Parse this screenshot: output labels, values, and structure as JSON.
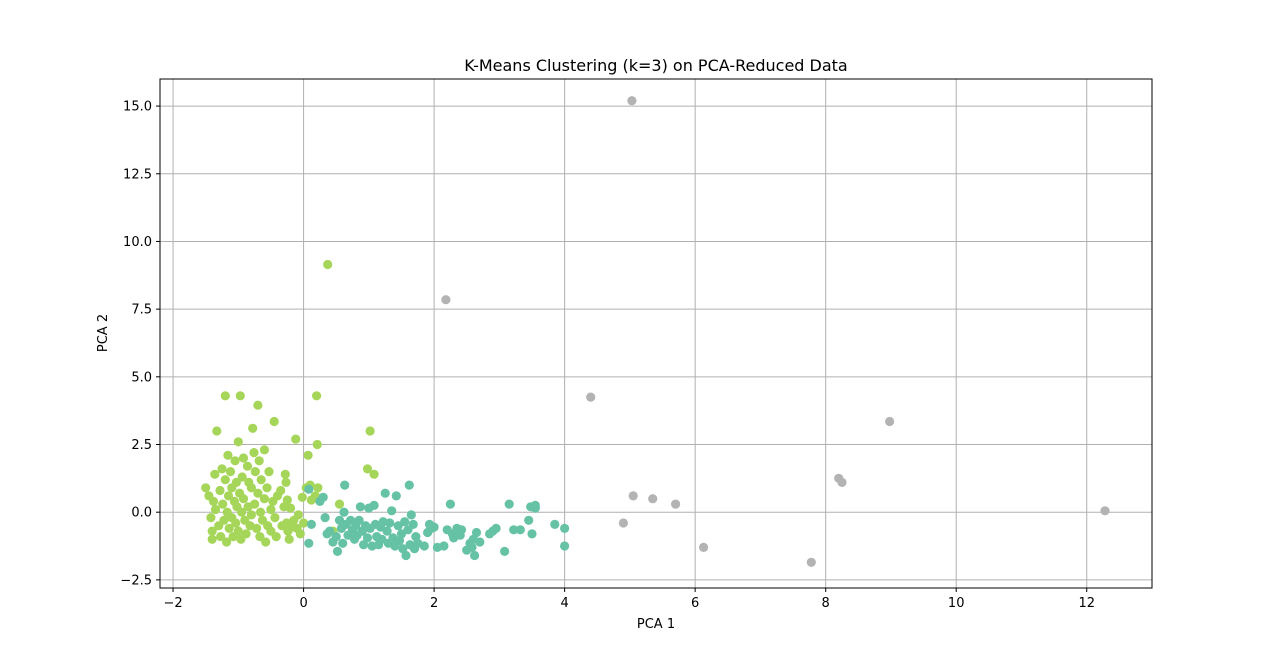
{
  "chart_data": {
    "type": "scatter",
    "title": "K-Means Clustering (k=3) on PCA-Reduced Data",
    "xlabel": "PCA 1",
    "ylabel": "PCA 2",
    "xlim": [
      -2.2,
      13.0
    ],
    "ylim": [
      -2.8,
      16.0
    ],
    "xticks": [
      -2,
      0,
      2,
      4,
      6,
      8,
      10,
      12
    ],
    "xtick_labels": [
      "−2",
      "0",
      "2",
      "4",
      "6",
      "8",
      "10",
      "12"
    ],
    "yticks": [
      -2.5,
      0.0,
      2.5,
      5.0,
      7.5,
      10.0,
      12.5,
      15.0
    ],
    "ytick_labels": [
      "−2.5",
      "0.0",
      "2.5",
      "5.0",
      "7.5",
      "10.0",
      "12.5",
      "15.0"
    ],
    "grid": true,
    "legend": "none",
    "series": [
      {
        "color": "#a5d65a",
        "points": [
          [
            -1.5,
            0.9
          ],
          [
            -1.45,
            0.6
          ],
          [
            -1.42,
            -0.2
          ],
          [
            -1.4,
            -0.7
          ],
          [
            -1.4,
            -1.0
          ],
          [
            -1.38,
            0.4
          ],
          [
            -1.36,
            1.4
          ],
          [
            -1.35,
            0.1
          ],
          [
            -1.33,
            3.0
          ],
          [
            -1.3,
            -0.5
          ],
          [
            -1.28,
            0.8
          ],
          [
            -1.27,
            -0.9
          ],
          [
            -1.25,
            1.6
          ],
          [
            -1.24,
            0.3
          ],
          [
            -1.22,
            -0.3
          ],
          [
            -1.2,
            4.3
          ],
          [
            -1.2,
            1.2
          ],
          [
            -1.18,
            -1.1
          ],
          [
            -1.17,
            0.0
          ],
          [
            -1.16,
            2.1
          ],
          [
            -1.15,
            0.6
          ],
          [
            -1.14,
            -0.6
          ],
          [
            -1.12,
            1.5
          ],
          [
            -1.1,
            0.9
          ],
          [
            -1.1,
            -0.2
          ],
          [
            -1.08,
            -0.9
          ],
          [
            -1.06,
            0.4
          ],
          [
            -1.05,
            1.9
          ],
          [
            -1.04,
            -0.4
          ],
          [
            -1.03,
            1.1
          ],
          [
            -1.02,
            0.2
          ],
          [
            -1.0,
            2.6
          ],
          [
            -1.0,
            -0.7
          ],
          [
            -0.98,
            0.7
          ],
          [
            -0.97,
            4.3
          ],
          [
            -0.96,
            -1.0
          ],
          [
            -0.95,
            0.0
          ],
          [
            -0.94,
            1.3
          ],
          [
            -0.92,
            2.0
          ],
          [
            -0.92,
            0.5
          ],
          [
            -0.9,
            -0.3
          ],
          [
            -0.88,
            -0.8
          ],
          [
            -0.86,
            1.7
          ],
          [
            -0.85,
            0.2
          ],
          [
            -0.84,
            1.1
          ],
          [
            -0.82,
            -0.5
          ],
          [
            -0.8,
            0.9
          ],
          [
            -0.8,
            -0.1
          ],
          [
            -0.78,
            3.1
          ],
          [
            -0.76,
            2.2
          ],
          [
            -0.75,
            0.3
          ],
          [
            -0.74,
            1.5
          ],
          [
            -0.72,
            -0.6
          ],
          [
            -0.7,
            3.95
          ],
          [
            -0.7,
            0.7
          ],
          [
            -0.68,
            1.9
          ],
          [
            -0.67,
            -0.9
          ],
          [
            -0.66,
            0.0
          ],
          [
            -0.65,
            1.2
          ],
          [
            -0.63,
            -0.3
          ],
          [
            -0.6,
            2.3
          ],
          [
            -0.6,
            0.5
          ],
          [
            -0.58,
            -1.1
          ],
          [
            -0.56,
            0.9
          ],
          [
            -0.55,
            -0.5
          ],
          [
            -0.53,
            1.5
          ],
          [
            -0.5,
            0.1
          ],
          [
            -0.5,
            -0.7
          ],
          [
            -0.47,
            0.4
          ],
          [
            -0.45,
            3.35
          ],
          [
            -0.44,
            -0.2
          ],
          [
            -0.42,
            -0.9
          ],
          [
            -0.4,
            0.6
          ],
          [
            -0.35,
            0.8
          ],
          [
            -0.33,
            -0.5
          ],
          [
            -0.3,
            0.2
          ],
          [
            -0.28,
            1.4
          ],
          [
            -0.27,
            1.1
          ],
          [
            -0.26,
            -0.4
          ],
          [
            -0.25,
            0.45
          ],
          [
            -0.24,
            -0.7
          ],
          [
            -0.22,
            -1.0
          ],
          [
            -0.2,
            0.15
          ],
          [
            -0.18,
            -0.55
          ],
          [
            -0.15,
            -0.3
          ],
          [
            -0.12,
            2.7
          ],
          [
            -0.1,
            -0.6
          ],
          [
            -0.08,
            -0.1
          ],
          [
            -0.05,
            -0.8
          ],
          [
            -0.02,
            0.55
          ],
          [
            0.0,
            -0.4
          ],
          [
            0.04,
            0.9
          ],
          [
            0.07,
            2.1
          ],
          [
            0.1,
            1.0
          ],
          [
            0.12,
            0.45
          ],
          [
            0.18,
            0.6
          ],
          [
            0.2,
            4.3
          ],
          [
            0.21,
            2.5
          ],
          [
            0.22,
            0.9
          ],
          [
            0.37,
            9.15
          ],
          [
            0.45,
            -0.7
          ],
          [
            0.55,
            0.3
          ],
          [
            0.98,
            1.6
          ],
          [
            1.02,
            3.0
          ],
          [
            1.08,
            1.4
          ]
        ]
      },
      {
        "color": "#66c2a5",
        "points": [
          [
            0.08,
            0.85
          ],
          [
            0.08,
            -1.15
          ],
          [
            0.12,
            -0.45
          ],
          [
            0.25,
            0.4
          ],
          [
            0.3,
            0.55
          ],
          [
            0.33,
            -0.2
          ],
          [
            0.36,
            -0.8
          ],
          [
            0.4,
            -0.7
          ],
          [
            0.45,
            -1.1
          ],
          [
            0.5,
            -0.9
          ],
          [
            0.52,
            -1.45
          ],
          [
            0.55,
            -0.3
          ],
          [
            0.58,
            -0.6
          ],
          [
            0.6,
            -1.15
          ],
          [
            0.62,
            0.0
          ],
          [
            0.63,
            1.0
          ],
          [
            0.65,
            -0.45
          ],
          [
            0.68,
            -0.85
          ],
          [
            0.72,
            -0.3
          ],
          [
            0.75,
            -0.65
          ],
          [
            0.78,
            -1.0
          ],
          [
            0.8,
            -0.5
          ],
          [
            0.82,
            -0.85
          ],
          [
            0.85,
            -0.3
          ],
          [
            0.87,
            0.2
          ],
          [
            0.9,
            -0.7
          ],
          [
            0.92,
            -1.2
          ],
          [
            0.95,
            -0.5
          ],
          [
            0.98,
            -0.95
          ],
          [
            1.0,
            0.15
          ],
          [
            1.02,
            -0.6
          ],
          [
            1.05,
            -1.25
          ],
          [
            1.08,
            0.25
          ],
          [
            1.1,
            -0.45
          ],
          [
            1.12,
            -0.9
          ],
          [
            1.15,
            -1.2
          ],
          [
            1.18,
            -0.55
          ],
          [
            1.2,
            -1.0
          ],
          [
            1.22,
            -0.35
          ],
          [
            1.25,
            0.7
          ],
          [
            1.28,
            -0.7
          ],
          [
            1.3,
            -1.15
          ],
          [
            1.32,
            -0.4
          ],
          [
            1.35,
            0.05
          ],
          [
            1.37,
            -0.95
          ],
          [
            1.4,
            -1.25
          ],
          [
            1.42,
            0.6
          ],
          [
            1.45,
            -0.5
          ],
          [
            1.47,
            -1.05
          ],
          [
            1.5,
            -0.8
          ],
          [
            1.52,
            -1.35
          ],
          [
            1.55,
            -0.35
          ],
          [
            1.57,
            -1.6
          ],
          [
            1.6,
            -0.65
          ],
          [
            1.62,
            1.0
          ],
          [
            1.63,
            -1.2
          ],
          [
            1.65,
            -0.1
          ],
          [
            1.68,
            -0.45
          ],
          [
            1.7,
            -1.35
          ],
          [
            1.72,
            -0.9
          ],
          [
            1.75,
            -1.15
          ],
          [
            1.85,
            -1.25
          ],
          [
            1.9,
            -0.75
          ],
          [
            1.93,
            -0.45
          ],
          [
            1.96,
            -0.6
          ],
          [
            2.0,
            -0.55
          ],
          [
            2.05,
            -1.3
          ],
          [
            2.15,
            -1.25
          ],
          [
            2.2,
            -0.65
          ],
          [
            2.25,
            0.3
          ],
          [
            2.28,
            -0.8
          ],
          [
            2.3,
            -0.95
          ],
          [
            2.35,
            -0.6
          ],
          [
            2.4,
            -0.85
          ],
          [
            2.42,
            -0.65
          ],
          [
            2.5,
            -1.4
          ],
          [
            2.55,
            -1.15
          ],
          [
            2.58,
            -1.3
          ],
          [
            2.6,
            -1.0
          ],
          [
            2.62,
            -1.6
          ],
          [
            2.65,
            -0.75
          ],
          [
            2.7,
            -1.1
          ],
          [
            2.85,
            -0.8
          ],
          [
            2.9,
            -0.7
          ],
          [
            2.95,
            -0.6
          ],
          [
            3.08,
            -1.45
          ],
          [
            3.15,
            0.3
          ],
          [
            3.22,
            -0.65
          ],
          [
            3.32,
            -0.65
          ],
          [
            3.45,
            -0.3
          ],
          [
            3.48,
            0.2
          ],
          [
            3.5,
            -0.8
          ],
          [
            3.55,
            0.25
          ],
          [
            3.55,
            0.15
          ],
          [
            3.85,
            -0.45
          ],
          [
            4.0,
            -1.25
          ],
          [
            4.0,
            -0.6
          ]
        ]
      },
      {
        "color": "#b3b3b3",
        "points": [
          [
            2.18,
            7.85
          ],
          [
            4.4,
            4.25
          ],
          [
            4.9,
            -0.4
          ],
          [
            5.03,
            15.2
          ],
          [
            5.05,
            0.6
          ],
          [
            5.35,
            0.5
          ],
          [
            5.7,
            0.3
          ],
          [
            6.13,
            -1.3
          ],
          [
            7.78,
            -1.85
          ],
          [
            8.2,
            1.25
          ],
          [
            8.25,
            1.1
          ],
          [
            8.98,
            3.35
          ],
          [
            12.28,
            0.05
          ]
        ]
      }
    ]
  }
}
